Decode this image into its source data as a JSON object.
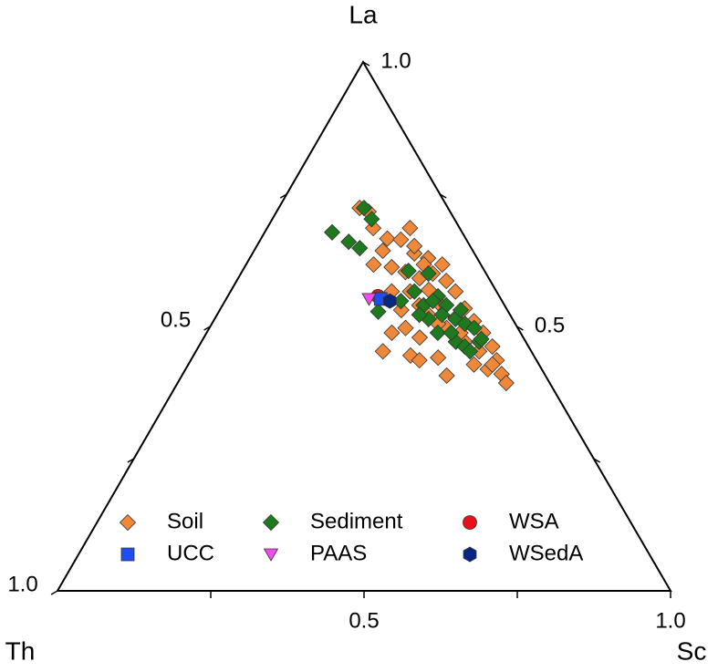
{
  "chart_data": {
    "type": "ternary",
    "axes": {
      "la": {
        "label": "La",
        "ticks": [
          0.5,
          {
            "value": 1,
            "label": "1.0"
          }
        ],
        "minor_ticks": [
          0.25,
          0.75
        ]
      },
      "th": {
        "label": "Th",
        "ticks": [
          0.5,
          {
            "value": 1,
            "label": "1.0"
          }
        ],
        "minor_ticks": [
          0.25,
          0.75
        ]
      },
      "sc": {
        "label": "Sc",
        "ticks": [
          0.5,
          {
            "value": 1,
            "label": "1.0"
          }
        ],
        "minor_ticks": [
          0.25,
          0.75
        ]
      }
    },
    "series": [
      {
        "name": "Soil",
        "color": "#f0883a",
        "marker": "diamond",
        "la": [
          0.724,
          0.717,
          0.686,
          0.686,
          0.666,
          0.664,
          0.643,
          0.638,
          0.629,
          0.617,
          0.617,
          0.612,
          0.603,
          0.6,
          0.591,
          0.586,
          0.566,
          0.566,
          0.569,
          0.566,
          0.54,
          0.545,
          0.534,
          0.531,
          0.522,
          0.517,
          0.51,
          0.497,
          0.497,
          0.488,
          0.479,
          0.471,
          0.462,
          0.453,
          0.445,
          0.441,
          0.428,
          0.436,
          0.41,
          0.393,
          0.436,
          0.407,
          0.419,
          0.652,
          0.617,
          0.505,
          0.488,
          0.488,
          0.453,
          0.428
        ],
        "sc": [
          0.132,
          0.15,
          0.233,
          0.173,
          0.206,
          0.229,
          0.21,
          0.264,
          0.291,
          0.32,
          0.208,
          0.24,
          0.267,
          0.313,
          0.296,
          0.342,
          0.263,
          0.293,
          0.322,
          0.367,
          0.321,
          0.349,
          0.398,
          0.296,
          0.345,
          0.392,
          0.425,
          0.32,
          0.387,
          0.451,
          0.352,
          0.43,
          0.479,
          0.305,
          0.354,
          0.401,
          0.466,
          0.499,
          0.52,
          0.536,
          0.373,
          0.432,
          0.493,
          0.257,
          0.29,
          0.369,
          0.414,
          0.302,
          0.462,
          0.496
        ],
        "th": [
          0.144,
          0.133,
          0.081,
          0.141,
          0.128,
          0.107,
          0.147,
          0.098,
          0.08,
          0.063,
          0.175,
          0.148,
          0.13,
          0.087,
          0.113,
          0.072,
          0.171,
          0.141,
          0.109,
          0.067,
          0.139,
          0.106,
          0.068,
          0.173,
          0.133,
          0.091,
          0.065,
          0.183,
          0.116,
          0.061,
          0.169,
          0.099,
          0.059,
          0.242,
          0.201,
          0.158,
          0.106,
          0.065,
          0.07,
          0.071,
          0.191,
          0.161,
          0.088,
          0.091,
          0.093,
          0.126,
          0.098,
          0.21,
          0.085,
          0.076
        ]
      },
      {
        "name": "Sediment",
        "color": "#1f7a1f",
        "marker": "diamond",
        "la": [
          0.678,
          0.724,
          0.703,
          0.66,
          0.648,
          0.605,
          0.6,
          0.566,
          0.557,
          0.54,
          0.54,
          0.514,
          0.514,
          0.522,
          0.505,
          0.488,
          0.497,
          0.471,
          0.471,
          0.462,
          0.476,
          0.548,
          0.528,
          0.522,
          0.488,
          0.453,
          0.531,
          0.548
        ],
        "sc": [
          0.11,
          0.139,
          0.162,
          0.146,
          0.17,
          0.271,
          0.306,
          0.3,
          0.343,
          0.328,
          0.365,
          0.349,
          0.393,
          0.367,
          0.413,
          0.377,
          0.432,
          0.415,
          0.453,
          0.434,
          0.454,
          0.287,
          0.26,
          0.33,
          0.399,
          0.447,
          0.393,
          0.339
        ],
        "th": [
          0.212,
          0.137,
          0.135,
          0.194,
          0.182,
          0.124,
          0.094,
          0.134,
          0.1,
          0.132,
          0.095,
          0.137,
          0.093,
          0.111,
          0.082,
          0.135,
          0.071,
          0.114,
          0.076,
          0.104,
          0.07,
          0.165,
          0.212,
          0.148,
          0.113,
          0.1,
          0.076,
          0.113
        ]
      },
      {
        "name": "WSA",
        "color": "#e8101a",
        "marker": "circle",
        "la": [
          0.557
        ],
        "sc": [
          0.245
        ],
        "th": [
          0.198
        ]
      },
      {
        "name": "UCC",
        "color": "#1f4ef0",
        "marker": "square",
        "la": [
          0.552
        ],
        "sc": [
          0.252
        ],
        "th": [
          0.196
        ]
      },
      {
        "name": "PAAS",
        "color": "#f04cf0",
        "marker": "triangle-down",
        "la": [
          0.552
        ],
        "sc": [
          0.233
        ],
        "th": [
          0.215
        ]
      },
      {
        "name": "WSedA",
        "color": "#0b2585",
        "marker": "hexagon",
        "la": [
          0.548
        ],
        "sc": [
          0.269
        ],
        "th": [
          0.183
        ]
      }
    ]
  }
}
